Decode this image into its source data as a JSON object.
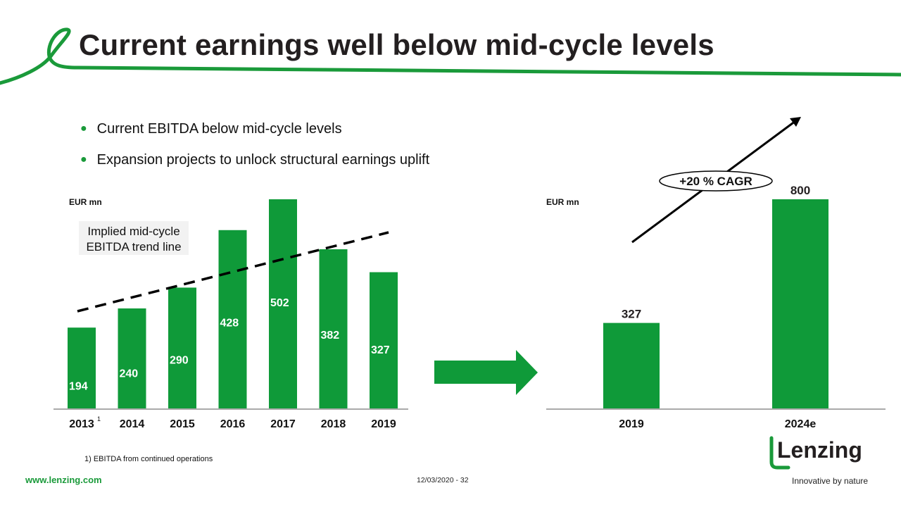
{
  "title": "Current earnings well below mid-cycle levels",
  "bullets": [
    "Current EBITDA below mid-cycle levels",
    "Expansion projects to unlock structural earnings uplift"
  ],
  "left_unit": "EUR mn",
  "right_unit": "EUR mn",
  "trend_label_line1": "Implied mid-cycle",
  "trend_label_line2": "EBITDA trend line",
  "cagr_label": "+20 % CAGR",
  "footnote": "1) EBITDA from continued operations",
  "website": "www.lenzing.com",
  "date_page": "12/03/2020 - 32",
  "brand_name": "Lenzing",
  "brand_tagline": "Innovative by nature",
  "colors": {
    "bar": "#0f9a39",
    "accent": "#1a9a3a",
    "text": "#231f20"
  },
  "chart_data": [
    {
      "type": "bar",
      "title": "",
      "ylabel": "EUR mn",
      "categories": [
        "2013",
        "2014",
        "2015",
        "2016",
        "2017",
        "2018",
        "2019"
      ],
      "category_footnotes": [
        "1",
        "",
        "",
        "",
        "",
        "",
        ""
      ],
      "values": [
        194,
        240,
        290,
        428,
        502,
        382,
        327
      ],
      "ylim": [
        0,
        502
      ],
      "data_labels": "inside",
      "trend_line": {
        "style": "dashed",
        "label": "Implied mid-cycle EBITDA trend line"
      }
    },
    {
      "type": "bar",
      "title": "",
      "ylabel": "EUR mn",
      "categories": [
        "2019",
        "2024e"
      ],
      "values": [
        327,
        800
      ],
      "ylim": [
        0,
        800
      ],
      "data_labels": "above",
      "annotation": "+20 % CAGR"
    }
  ]
}
